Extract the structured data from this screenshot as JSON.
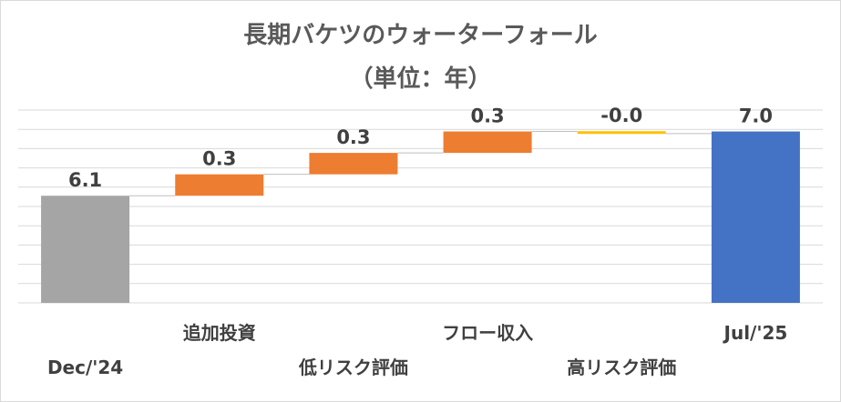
{
  "chart_data": {
    "type": "bar",
    "title": "長期バケツのウォーターフォール",
    "subtitle": "（単位：年）",
    "categories": [
      "Dec/'24",
      "追加投資",
      "低リスク評価",
      "フロー収入",
      "高リスク評価",
      "Jul/'25"
    ],
    "values": [
      6.1,
      0.3,
      0.3,
      0.3,
      -0.03,
      7.0
    ],
    "value_labels": [
      "6.1",
      "0.3",
      "0.3",
      "0.3",
      "-0.0",
      "7.0"
    ],
    "bar_kind": [
      "total",
      "increase",
      "increase",
      "increase",
      "decrease",
      "total"
    ],
    "ylim": [
      4.6,
      7.3
    ],
    "grid": true,
    "colors": {
      "start_total": "#a5a5a5",
      "increase": "#ed7d31",
      "decrease": "#ffc000",
      "end_total": "#4472c4",
      "gridline": "#d9d9d9",
      "connector": "#bfbfbf"
    }
  }
}
